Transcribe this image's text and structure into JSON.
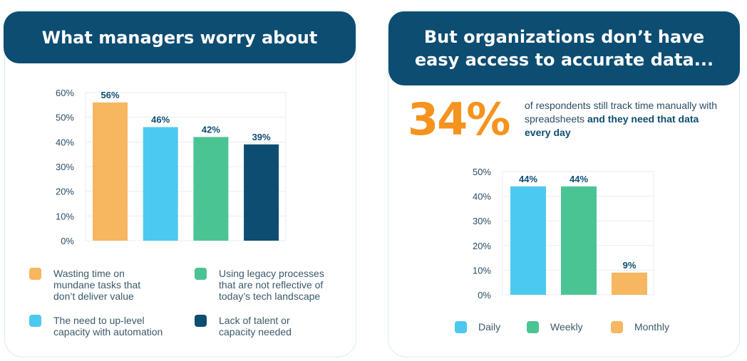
{
  "left_panel": {
    "title": "What managers worry about",
    "legend": [
      {
        "label": "Wasting time on mundane tasks that don’t deliver value",
        "color": "#f7b660"
      },
      {
        "label": "Using legacy processes that are not reflective of today’s tech landscape",
        "color": "#4bc493"
      },
      {
        "label": "The need to up-level capacity with automation",
        "color": "#4cc9ee"
      },
      {
        "label": "Lack of talent or capacity needed",
        "color": "#0d4d72"
      }
    ]
  },
  "right_panel": {
    "title": "But organizations don’t have easy access to accurate data...",
    "stat_value": "34%",
    "stat_text_regular": "of respondents still track time manually with spreadsheets ",
    "stat_text_bold": "and they need that data every day",
    "legend": [
      {
        "label": "Daily",
        "color": "#4cc9ee"
      },
      {
        "label": "Weekly",
        "color": "#4bc493"
      },
      {
        "label": "Monthly",
        "color": "#f7b660"
      }
    ]
  },
  "chart_data": [
    {
      "type": "bar",
      "categories": [
        "Wasting time on mundane tasks that don’t deliver value",
        "The need to up-level capacity with automation",
        "Using legacy processes that are not reflective of today’s tech landscape",
        "Lack of talent or capacity needed"
      ],
      "values": [
        56,
        46,
        42,
        39
      ],
      "value_labels": [
        "56%",
        "46%",
        "42%",
        "39%"
      ],
      "colors": [
        "#f7b660",
        "#4cc9ee",
        "#4bc493",
        "#0d4d72"
      ],
      "title": "What managers worry about",
      "ylim": [
        0,
        60
      ],
      "yticks": [
        "0%",
        "10%",
        "20%",
        "30%",
        "40%",
        "50%",
        "60%"
      ],
      "grid": true,
      "legend_position": "bottom"
    },
    {
      "type": "bar",
      "categories": [
        "Daily",
        "Weekly",
        "Monthly"
      ],
      "values": [
        44,
        44,
        9
      ],
      "value_labels": [
        "44%",
        "44%",
        "9%"
      ],
      "colors": [
        "#4cc9ee",
        "#4bc493",
        "#f7b660"
      ],
      "ylim": [
        0,
        50
      ],
      "yticks": [
        "0%",
        "10%",
        "20%",
        "30%",
        "40%",
        "50%"
      ],
      "grid": true,
      "legend_position": "bottom"
    }
  ]
}
